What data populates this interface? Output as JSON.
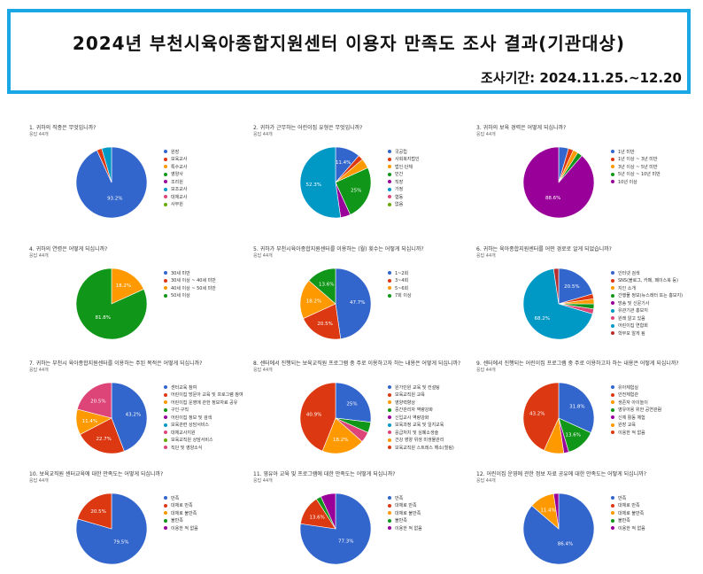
{
  "header": {
    "title": "2024년 부천시육아종합지원센터 이용자 만족도 조사 결과(기관대상)",
    "period": "조사기간: 2024.11.25.~12.20"
  },
  "chart_data": [
    {
      "type": "pie",
      "title": "1. 귀하의 직종은 무엇입니까?",
      "subtitle": "응답 44개",
      "categories": [
        "원장",
        "보육교사",
        "특수교사",
        "영양사",
        "조리원",
        "보조교사",
        "대체교사",
        "사무원"
      ],
      "values": [
        93.2,
        2.3,
        0,
        0,
        0,
        4.5,
        0,
        0
      ],
      "labels": [
        "93.2%",
        "",
        "",
        "",
        "",
        "",
        "",
        ""
      ],
      "colors": [
        "#3366cc",
        "#dc3912",
        "#ff9900",
        "#109618",
        "#990099",
        "#0099c6",
        "#dd4477",
        "#66aa00"
      ]
    },
    {
      "type": "pie",
      "title": "2. 귀하가 근무하는 어린이집 유형은 무엇입니까?",
      "subtitle": "응답 44개",
      "categories": [
        "국공립",
        "사회복지법인",
        "법인·단체",
        "민간",
        "직장",
        "가정",
        "협동",
        "없음"
      ],
      "values": [
        11.4,
        2.3,
        4.5,
        25,
        4.5,
        52.3,
        0,
        0
      ],
      "labels": [
        "11.4%",
        "",
        "",
        "25%",
        "",
        "52.3%",
        "",
        ""
      ],
      "colors": [
        "#3366cc",
        "#dc3912",
        "#ff9900",
        "#109618",
        "#990099",
        "#0099c6",
        "#dd4477",
        "#66aa00"
      ]
    },
    {
      "type": "pie",
      "title": "3. 귀하의 보육 경력은 어떻게 되십니까?",
      "subtitle": "응답 44개",
      "categories": [
        "1년 미만",
        "1년 이상 ~ 3년 미만",
        "3년 이상 ~ 5년 미만",
        "5년 이상 ~ 10년 미만",
        "10년 이상"
      ],
      "values": [
        4.5,
        2.3,
        2.3,
        2.3,
        88.6
      ],
      "labels": [
        "",
        "",
        "",
        "",
        "88.6%"
      ],
      "colors": [
        "#3366cc",
        "#dc3912",
        "#ff9900",
        "#109618",
        "#990099"
      ]
    },
    {
      "type": "pie",
      "title": "4. 귀하의 연령은 어떻게 되십니까?",
      "subtitle": "응답 44개",
      "categories": [
        "30세 미만",
        "30세 이상 ~ 40세 미만",
        "40세 이상 ~ 50세 미만",
        "50세 이상"
      ],
      "values": [
        0,
        0,
        18.2,
        81.8
      ],
      "labels": [
        "",
        "",
        "18.2%",
        "81.8%"
      ],
      "colors": [
        "#3366cc",
        "#dc3912",
        "#ff9900",
        "#109618"
      ]
    },
    {
      "type": "pie",
      "title": "5. 귀하가 부천시육아종합지원센터를 이용하는 (월) 횟수는 어떻게 되십니까?",
      "subtitle": "응답 44개",
      "categories": [
        "1~2회",
        "3~4회",
        "5~6회",
        "7회 이상"
      ],
      "values": [
        47.7,
        20.5,
        18.2,
        13.6
      ],
      "labels": [
        "47.7%",
        "20.5%",
        "18.2%",
        "13.6%"
      ],
      "colors": [
        "#3366cc",
        "#dc3912",
        "#ff9900",
        "#109618"
      ]
    },
    {
      "type": "pie",
      "title": "6. 귀하는 육아종합지원센터를 어떤 경로로 알게 되었습니까?",
      "subtitle": "응답 44개",
      "categories": [
        "인터넷 검색",
        "SNS(블로그, 카페, 페이스북 등)",
        "지인 소개",
        "간행물 정보(뉴스레터 또는 홍보지)",
        "방송 및 신문기사",
        "유관기관 홍보지",
        "원래 알고 있음",
        "어린이집 연합회",
        "학부모 알게 됨"
      ],
      "values": [
        20.5,
        2.3,
        2.3,
        2.3,
        0,
        0,
        2.3,
        68.2,
        2.3
      ],
      "labels": [
        "20.5%",
        "",
        "",
        "",
        "",
        "",
        "",
        "68.2%",
        ""
      ],
      "colors": [
        "#3366cc",
        "#dc3912",
        "#ff9900",
        "#109618",
        "#990099",
        "#0099c6",
        "#dd4477",
        "#0099c6",
        "#b82e2e"
      ]
    },
    {
      "type": "pie",
      "title": "7. 귀하는 부천시 육아종합지원센터를 이용하는 주된 목적은 어떻게 되십니까?",
      "subtitle": "응답 44개",
      "categories": [
        "센터교육 참여",
        "어린이집 방문아 교육 및 프로그램 참여",
        "어린이집 운영에 관한 정보자료 공유",
        "구인·구직",
        "어린이집 정보 및 검색",
        "보육관련 상담서비스",
        "대체교사지원",
        "보육교직원 상담서비스",
        "직단 및 영양소식"
      ],
      "values": [
        43.2,
        22.7,
        11.4,
        0,
        0,
        0,
        0,
        0,
        20.5
      ],
      "labels": [
        "43.2%",
        "22.7%",
        "11.4%",
        "",
        "",
        "",
        "",
        "",
        "20.5%"
      ],
      "colors": [
        "#3366cc",
        "#dc3912",
        "#ff9900",
        "#109618",
        "#990099",
        "#0099c6",
        "#dd4477",
        "#66aa00",
        "#dd4477"
      ]
    },
    {
      "type": "pie",
      "title": "8. 센터에서 진행되는 보육교직원 프로그램 중 주로 이용하고자 하는 내용은 어떻게 되십니까?",
      "subtitle": "응답 44개",
      "categories": [
        "원가민원 교육 및 컨설팅",
        "보육교직원 교육",
        "영양력향상",
        "중간관리자 역량강화",
        "신입교사 역량강화",
        "보육과정 교육 및 일지교육",
        "응급처치 및 심폐소생술",
        "건강 영양 위생 미생물관리",
        "보육교직원 스트레스 해소(힐링)"
      ],
      "values": [
        25,
        0,
        0,
        4.5,
        0,
        0,
        4.5,
        18.2,
        40.9
      ],
      "labels": [
        "25%",
        "",
        "",
        "",
        "",
        "",
        "",
        "18.2%",
        "40.9%"
      ],
      "colors": [
        "#3366cc",
        "#dc3912",
        "#ff9900",
        "#109618",
        "#990099",
        "#0099c6",
        "#dd4477",
        "#ff9900",
        "#dc3912"
      ]
    },
    {
      "type": "pie",
      "title": "9. 센터에서 진행되는 어린이집 프로그램 중 주로 이용하고자 하는 내용은 어떻게 되십니까?",
      "subtitle": "응답 44개",
      "categories": [
        "유아체험실",
        "안전체험관",
        "생존자 아이놀이",
        "영유아용 위한 공연관람",
        "신체 활동 체험",
        "원장 교육",
        "이용한 적 없음"
      ],
      "values": [
        31.8,
        0,
        0,
        13.6,
        2.3,
        9.1,
        43.2
      ],
      "labels": [
        "31.8%",
        "",
        "",
        "13.6%",
        "",
        "",
        "43.2%"
      ],
      "colors": [
        "#3366cc",
        "#dc3912",
        "#ff9900",
        "#109618",
        "#990099",
        "#ff9900",
        "#dc3912"
      ]
    },
    {
      "type": "pie",
      "title": "10. 보육교직원 센터교육에 대한 만족도는 어떻게 되십니까?",
      "subtitle": "응답 44개",
      "categories": [
        "만족",
        "대체로 만족",
        "대체로 불만족",
        "불만족",
        "이용한 적 없음"
      ],
      "values": [
        79.5,
        20.5,
        0,
        0,
        0
      ],
      "labels": [
        "79.5%",
        "20.5%",
        "",
        "",
        ""
      ],
      "colors": [
        "#3366cc",
        "#dc3912",
        "#ff9900",
        "#109618",
        "#990099"
      ]
    },
    {
      "type": "pie",
      "title": "11. 영유아 교육 및 프로그램에 대한 만족도는 어떻게 되십니까?",
      "subtitle": "응답 44개",
      "categories": [
        "만족",
        "대체로 만족",
        "대체로 불만족",
        "불만족",
        "이용한 적 없음"
      ],
      "values": [
        77.3,
        13.6,
        0,
        2.3,
        6.8
      ],
      "labels": [
        "77.3%",
        "13.6%",
        "",
        "",
        ""
      ],
      "colors": [
        "#3366cc",
        "#dc3912",
        "#ff9900",
        "#109618",
        "#990099"
      ]
    },
    {
      "type": "pie",
      "title": "12. 어린이집 운영에 관한 정보 자료 공유에 대한 만족도는 어떻게 되십니까?",
      "subtitle": "응답 44개",
      "categories": [
        "만족",
        "대체로 만족",
        "대체로 불만족",
        "불만족",
        "이용한 적 없음"
      ],
      "values": [
        86.4,
        0,
        11.4,
        0,
        2.3
      ],
      "labels": [
        "86.4%",
        "",
        "11.4%",
        "",
        ""
      ],
      "colors": [
        "#3366cc",
        "#dc3912",
        "#ff9900",
        "#109618",
        "#990099"
      ]
    }
  ]
}
